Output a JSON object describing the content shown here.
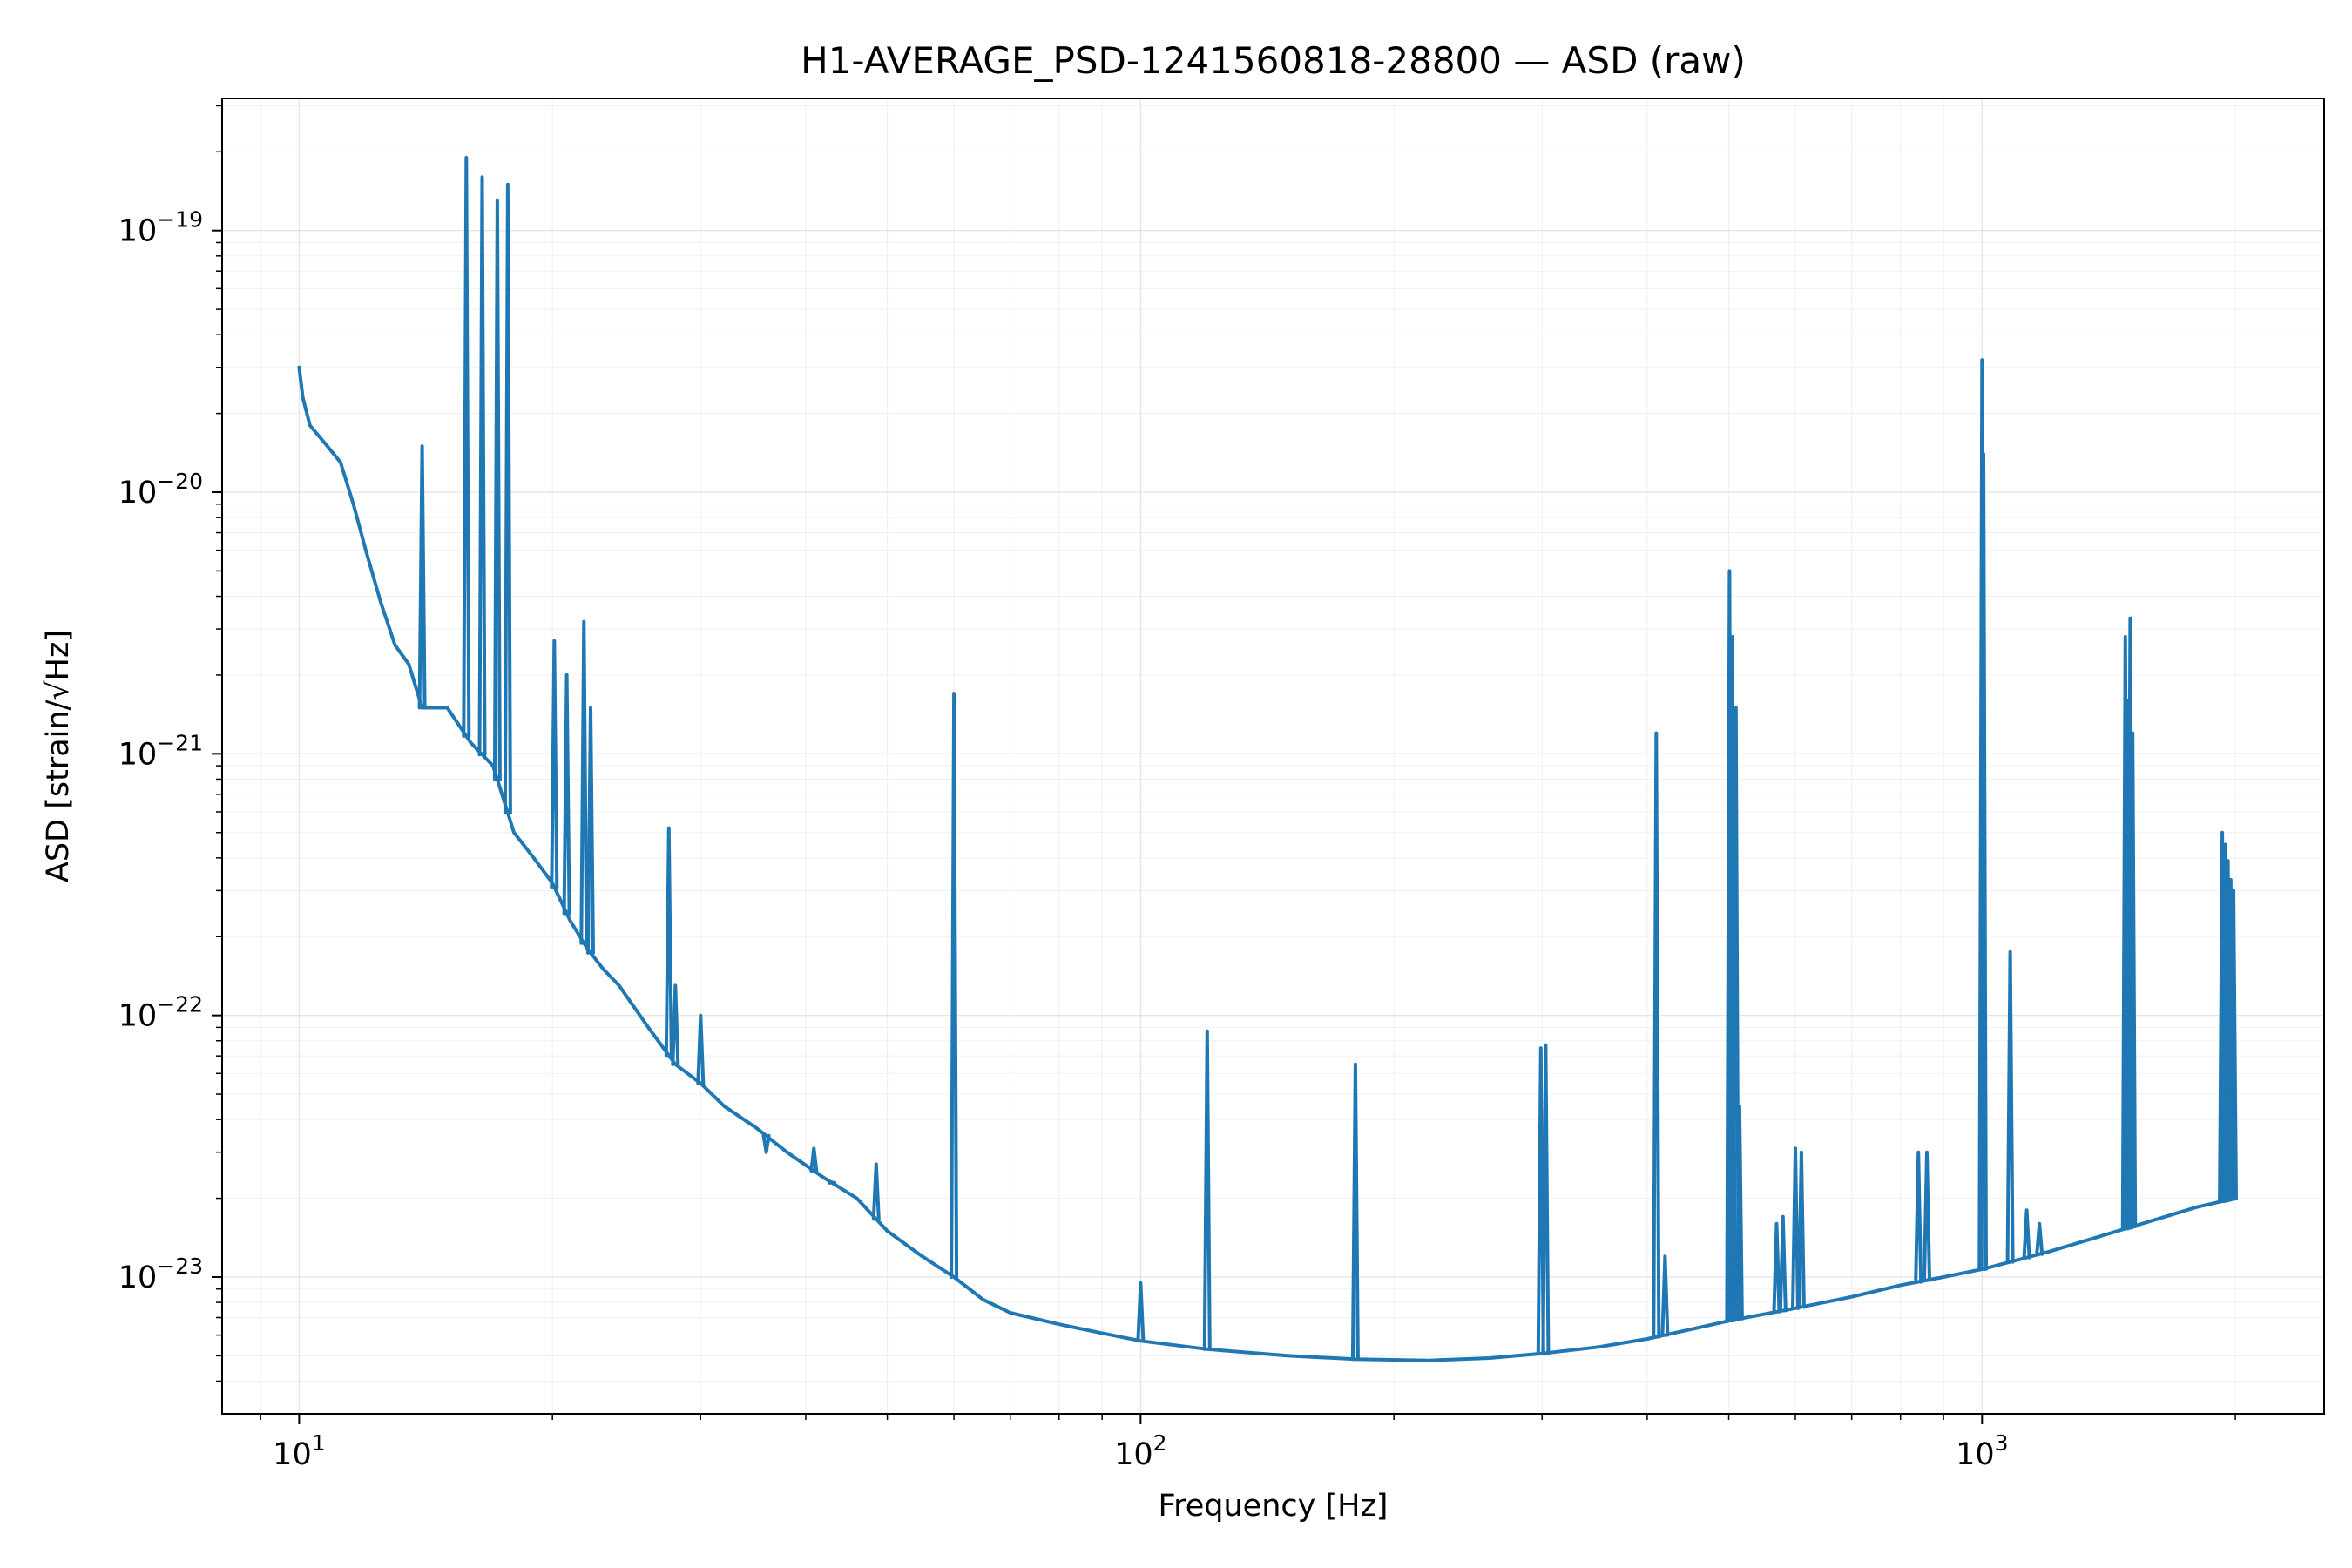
{
  "chart_data": {
    "type": "line",
    "title": "H1-AVERAGE_PSD-1241560818-28800 — ASD (raw)",
    "xlabel": "Frequency [Hz]",
    "ylabel": "ASD [strain/√Hz]",
    "xscale": "log",
    "yscale": "log",
    "xlim": [
      8.1,
      2550
    ],
    "ylim": [
      3e-24,
      3.2e-19
    ],
    "grid": "major and minor",
    "x_ticks": [
      {
        "value": 10,
        "mantissa": "10",
        "exp": "1"
      },
      {
        "value": 100,
        "mantissa": "10",
        "exp": "2"
      },
      {
        "value": 1000,
        "mantissa": "10",
        "exp": "3"
      }
    ],
    "y_ticks": [
      {
        "value": 1e-23,
        "mantissa": "10",
        "exp": "−23"
      },
      {
        "value": 1e-22,
        "mantissa": "10",
        "exp": "−22"
      },
      {
        "value": 1e-21,
        "mantissa": "10",
        "exp": "−21"
      },
      {
        "value": 1e-20,
        "mantissa": "10",
        "exp": "−20"
      },
      {
        "value": 1e-19,
        "mantissa": "10",
        "exp": "−19"
      }
    ],
    "series": [
      {
        "color": "#1f77b4",
        "baseline": [
          [
            10,
            3e-20
          ],
          [
            10.1,
            2.3e-20
          ],
          [
            10.3,
            1.8e-20
          ],
          [
            10.8,
            1.5e-20
          ],
          [
            11.2,
            1.3e-20
          ],
          [
            11.6,
            9e-21
          ],
          [
            12.0,
            6e-21
          ],
          [
            12.5,
            3.8e-21
          ],
          [
            13.0,
            2.6e-21
          ],
          [
            13.5,
            2.2e-21
          ],
          [
            14.0,
            1.5e-21
          ],
          [
            15.0,
            1.5e-21
          ],
          [
            16.0,
            1.1e-21
          ],
          [
            17.0,
            9e-22
          ],
          [
            18.0,
            5e-22
          ],
          [
            19.0,
            4e-22
          ],
          [
            20.0,
            3.2e-22
          ],
          [
            21.0,
            2.3e-22
          ],
          [
            22.0,
            1.8e-22
          ],
          [
            23.0,
            1.5e-22
          ],
          [
            24.0,
            1.3e-22
          ],
          [
            26.0,
            9e-23
          ],
          [
            28.0,
            6.5e-23
          ],
          [
            30.0,
            5.5e-23
          ],
          [
            32.0,
            4.5e-23
          ],
          [
            35.0,
            3.7e-23
          ],
          [
            38.0,
            3e-23
          ],
          [
            42.0,
            2.4e-23
          ],
          [
            46.0,
            2e-23
          ],
          [
            50.0,
            1.5e-23
          ],
          [
            55.0,
            1.2e-23
          ],
          [
            60.0,
            1e-23
          ],
          [
            65.0,
            8.2e-24
          ],
          [
            70.0,
            7.3e-24
          ],
          [
            80.0,
            6.6e-24
          ],
          [
            90.0,
            6.1e-24
          ],
          [
            100.0,
            5.7e-24
          ],
          [
            120.0,
            5.3e-24
          ],
          [
            150.0,
            5e-24
          ],
          [
            180.0,
            4.85e-24
          ],
          [
            220.0,
            4.8e-24
          ],
          [
            260.0,
            4.9e-24
          ],
          [
            300.0,
            5.1e-24
          ],
          [
            350.0,
            5.4e-24
          ],
          [
            400.0,
            5.8e-24
          ],
          [
            450.0,
            6.3e-24
          ],
          [
            500.0,
            6.8e-24
          ],
          [
            600.0,
            7.6e-24
          ],
          [
            700.0,
            8.4e-24
          ],
          [
            800.0,
            9.3e-24
          ],
          [
            900.0,
            1e-23
          ],
          [
            1000.0,
            1.07e-23
          ],
          [
            1200.0,
            1.25e-23
          ],
          [
            1400.0,
            1.45e-23
          ],
          [
            1600.0,
            1.65e-23
          ],
          [
            1800.0,
            1.85e-23
          ],
          [
            2000.0,
            2e-23
          ]
        ],
        "peaks": [
          [
            14.0,
            1.5e-20
          ],
          [
            15.8,
            1.9e-19
          ],
          [
            16.5,
            1.6e-19
          ],
          [
            17.2,
            1.3e-19
          ],
          [
            17.7,
            1.5e-19
          ],
          [
            20.1,
            2.7e-21
          ],
          [
            20.8,
            2e-21
          ],
          [
            21.8,
            3.2e-21
          ],
          [
            22.2,
            1.5e-21
          ],
          [
            27.5,
            5.2e-22
          ],
          [
            28.0,
            1.3e-22
          ],
          [
            30.0,
            1e-22
          ],
          [
            35.9,
            3e-23
          ],
          [
            40.9,
            3.1e-23
          ],
          [
            43.0,
            2.3e-23
          ],
          [
            48.5,
            2.7e-23
          ],
          [
            60.0,
            1.7e-21
          ],
          [
            100.0,
            9.5e-24
          ],
          [
            120.0,
            8.7e-23
          ],
          [
            180.0,
            6.5e-23
          ],
          [
            299.0,
            7.5e-23
          ],
          [
            303.0,
            7.7e-23
          ],
          [
            410.0,
            1.2e-21
          ],
          [
            420.0,
            1.2e-23
          ],
          [
            501.0,
            5e-21
          ],
          [
            505.0,
            2.8e-21
          ],
          [
            510.0,
            1.5e-21
          ],
          [
            515.0,
            4.5e-23
          ],
          [
            570.0,
            1.6e-23
          ],
          [
            580.0,
            1.7e-23
          ],
          [
            600.0,
            3.1e-23
          ],
          [
            610.0,
            3e-23
          ],
          [
            840.0,
            3e-23
          ],
          [
            860.0,
            3e-23
          ],
          [
            1000.0,
            3.2e-20
          ],
          [
            1004.0,
            1.4e-20
          ],
          [
            1080.0,
            1.75e-22
          ],
          [
            1130.0,
            1.8e-23
          ],
          [
            1170.0,
            1.6e-23
          ],
          [
            1480.0,
            2.8e-21
          ],
          [
            1490.0,
            1.6e-21
          ],
          [
            1500.0,
            3.3e-21
          ],
          [
            1510.0,
            1.2e-21
          ],
          [
            1930.0,
            5e-22
          ],
          [
            1945.0,
            4.5e-22
          ],
          [
            1960.0,
            3.9e-22
          ],
          [
            1975.0,
            3.3e-22
          ],
          [
            1990.0,
            3e-22
          ]
        ]
      }
    ]
  }
}
